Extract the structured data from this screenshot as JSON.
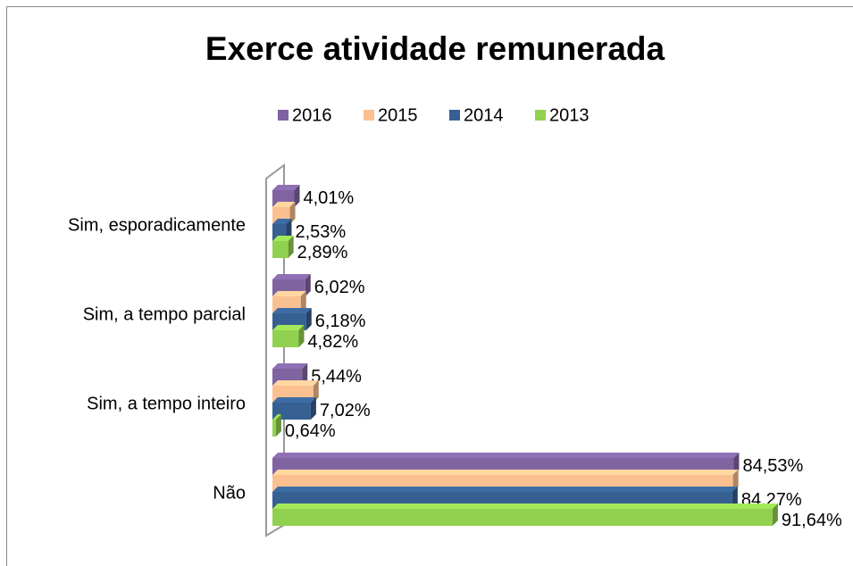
{
  "chart_data": {
    "type": "bar3d_horizontal",
    "title": "Exerce atividade remunerada",
    "categories": [
      "Sim, esporadicamente",
      "Sim, a tempo parcial",
      "Sim, a tempo inteiro",
      "Não"
    ],
    "series": [
      {
        "name": "2016",
        "color": "#8064a2",
        "values": [
          4.01,
          6.02,
          5.44,
          84.53
        ],
        "value_labels": [
          "4,01%",
          "6,02%",
          "5,44%",
          "84,53%"
        ]
      },
      {
        "name": "2015",
        "color": "#fac090",
        "values": [
          3.2,
          5.2,
          7.5,
          84.4
        ]
      },
      {
        "name": "2014",
        "color": "#366092",
        "values": [
          2.53,
          6.18,
          7.02,
          84.27
        ],
        "value_labels": [
          "2,53%",
          "6,18%",
          "7,02%",
          "84,27%"
        ]
      },
      {
        "name": "2013",
        "color": "#92d050",
        "values": [
          2.89,
          4.82,
          0.64,
          91.64
        ],
        "value_labels": [
          "2,89%",
          "4,82%",
          "0,64%",
          "91,64%"
        ]
      }
    ],
    "xlim": [
      0,
      100
    ],
    "legend": "top"
  }
}
